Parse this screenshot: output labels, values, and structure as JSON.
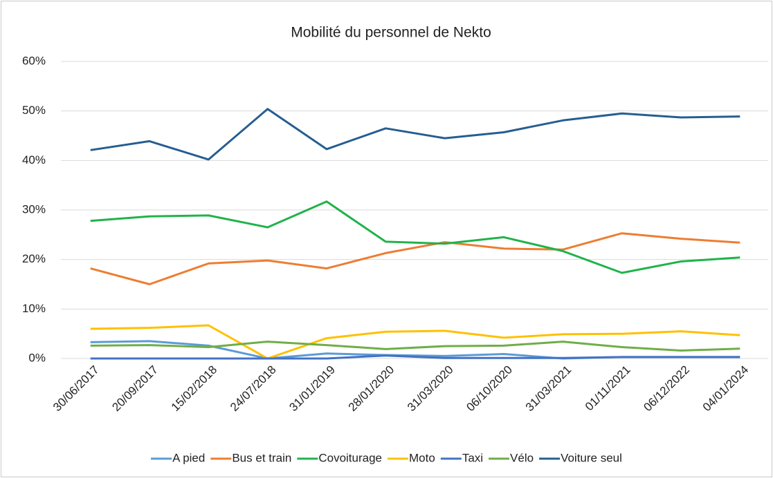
{
  "chart_data": {
    "type": "line",
    "title": "Mobilité du personnel de Nekto",
    "categories": [
      "30/06/2017",
      "20/09/2017",
      "15/02/2018",
      "24/07/2018",
      "31/01/2019",
      "28/01/2020",
      "31/03/2020",
      "06/10/2020",
      "31/03/2021",
      "01/11/2021",
      "06/12/2022",
      "04/01/2024"
    ],
    "series": [
      {
        "name": "A pied",
        "color": "#5b9bd5",
        "values": [
          3.3,
          3.5,
          2.6,
          0,
          1.0,
          0.7,
          0.5,
          0.9,
          0,
          0.3,
          0.3,
          0.3
        ]
      },
      {
        "name": "Bus et train",
        "color": "#ed7d31",
        "values": [
          18.2,
          15.0,
          19.2,
          19.8,
          18.2,
          21.3,
          23.5,
          22.2,
          22.0,
          25.3,
          24.2,
          23.4
        ]
      },
      {
        "name": "Covoiturage",
        "color": "#1fb34a",
        "values": [
          27.8,
          28.7,
          28.9,
          26.5,
          31.7,
          23.6,
          23.2,
          24.5,
          21.7,
          17.3,
          19.6,
          20.4
        ]
      },
      {
        "name": "Moto",
        "color": "#ffc000",
        "values": [
          6.0,
          6.2,
          6.7,
          0,
          4.1,
          5.4,
          5.6,
          4.2,
          4.9,
          5.0,
          5.5,
          4.7
        ]
      },
      {
        "name": "Taxi",
        "color": "#4472c4",
        "values": [
          0,
          0,
          0,
          0,
          0,
          0.6,
          0.1,
          0.1,
          0.1,
          0.3,
          0.3,
          0.3
        ]
      },
      {
        "name": "Vélo",
        "color": "#70ad47",
        "values": [
          2.6,
          2.7,
          2.3,
          3.4,
          2.7,
          1.9,
          2.5,
          2.6,
          3.4,
          2.3,
          1.6,
          2.0
        ]
      },
      {
        "name": "Voiture seul",
        "color": "#255e91",
        "values": [
          42.1,
          43.9,
          40.2,
          50.4,
          42.3,
          46.5,
          44.5,
          45.7,
          48.1,
          49.5,
          48.7,
          48.9
        ]
      }
    ],
    "ylim": [
      0,
      60
    ],
    "yticks": [
      {
        "value": 0,
        "label": "0%"
      },
      {
        "value": 10,
        "label": "10%"
      },
      {
        "value": 20,
        "label": "20%"
      },
      {
        "value": 30,
        "label": "30%"
      },
      {
        "value": 40,
        "label": "40%"
      },
      {
        "value": 50,
        "label": "50%"
      },
      {
        "value": 60,
        "label": "60%"
      }
    ],
    "grid": true
  }
}
